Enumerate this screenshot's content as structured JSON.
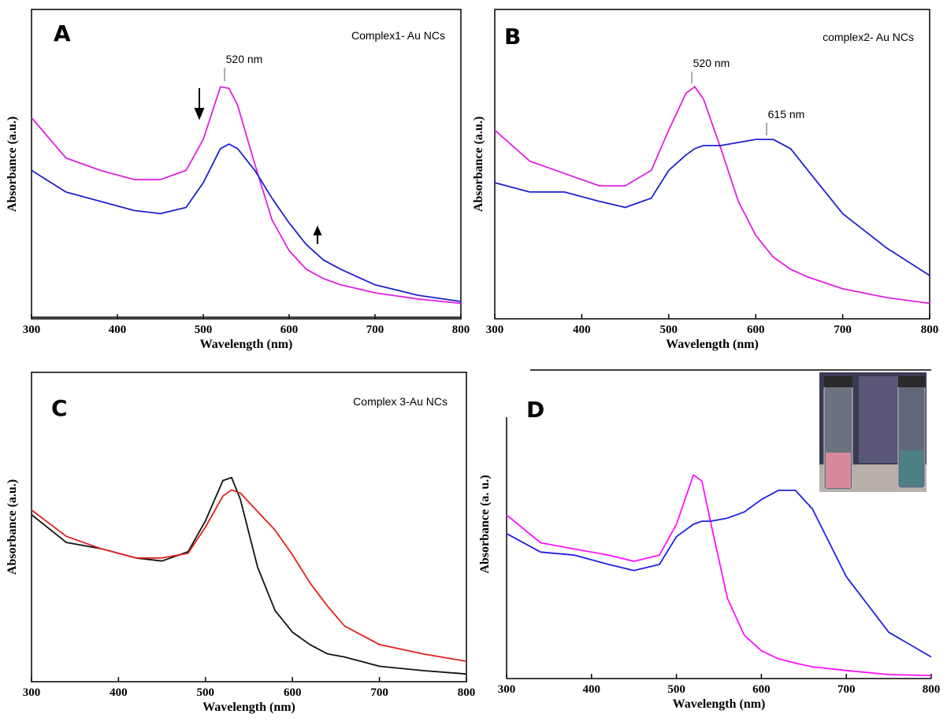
{
  "chart_data": [
    {
      "type": "line",
      "panel": "A",
      "subtitle": "Complex1- Au NCs",
      "x_label": "Wavelength (nm)",
      "y_label": "Absorbance (a.u.)",
      "annotations": [
        "520 nm"
      ],
      "x": [
        300,
        340,
        380,
        420,
        450,
        480,
        500,
        520,
        530,
        540,
        560,
        580,
        600,
        620,
        640,
        660,
        700,
        750,
        800
      ],
      "series": [
        {
          "color": "#e020e0",
          "values": [
            0.65,
            0.52,
            0.48,
            0.45,
            0.45,
            0.48,
            0.58,
            0.75,
            0.745,
            0.69,
            0.5,
            0.32,
            0.22,
            0.16,
            0.13,
            0.11,
            0.084,
            0.064,
            0.05
          ]
        },
        {
          "color": "#2020d0",
          "values": [
            0.48,
            0.41,
            0.38,
            0.35,
            0.34,
            0.36,
            0.44,
            0.55,
            0.565,
            0.55,
            0.48,
            0.39,
            0.31,
            0.24,
            0.19,
            0.16,
            0.11,
            0.076,
            0.056
          ]
        },
        {
          "color": "#222222",
          "values": [
            0.005,
            0.005,
            0.005,
            0.005,
            0.005,
            0.005,
            0.005,
            0.005,
            0.005,
            0.005,
            0.005,
            0.005,
            0.005,
            0.005,
            0.005,
            0.005,
            0.005,
            0.005,
            0.005
          ]
        }
      ],
      "xlim": [
        300,
        800
      ],
      "xticks": [
        300,
        400,
        500,
        600,
        700,
        800
      ],
      "ylim": [
        0,
        1
      ]
    },
    {
      "type": "line",
      "panel": "B",
      "subtitle": "complex2- Au NCs",
      "x_label": "Wavelength (nm)",
      "y_label": "Absorbance (a.u.)",
      "annotations": [
        "520 nm",
        "615 nm"
      ],
      "x": [
        300,
        340,
        380,
        420,
        450,
        480,
        500,
        520,
        530,
        540,
        560,
        580,
        600,
        620,
        640,
        660,
        700,
        750,
        800
      ],
      "series": [
        {
          "color": "#e020e0",
          "values": [
            0.61,
            0.51,
            0.47,
            0.43,
            0.43,
            0.48,
            0.61,
            0.73,
            0.75,
            0.71,
            0.55,
            0.38,
            0.27,
            0.2,
            0.16,
            0.135,
            0.097,
            0.069,
            0.05
          ]
        },
        {
          "color": "#2020d0",
          "values": [
            0.44,
            0.41,
            0.41,
            0.38,
            0.36,
            0.39,
            0.48,
            0.53,
            0.55,
            0.56,
            0.56,
            0.57,
            0.58,
            0.58,
            0.55,
            0.48,
            0.34,
            0.23,
            0.14
          ]
        }
      ],
      "xlim": [
        300,
        800
      ],
      "xticks": [
        300,
        400,
        500,
        600,
        700,
        800
      ],
      "ylim": [
        0,
        1
      ]
    },
    {
      "type": "line",
      "panel": "C",
      "subtitle": "Complex 3-Au NCs",
      "x_label": "Wavelength (nm)",
      "y_label": "Absorbance (a.u.)",
      "x": [
        300,
        340,
        380,
        420,
        450,
        480,
        500,
        520,
        530,
        540,
        560,
        580,
        600,
        620,
        640,
        660,
        700,
        750,
        800
      ],
      "series": [
        {
          "color": "#111111",
          "values": [
            0.54,
            0.45,
            0.43,
            0.4,
            0.39,
            0.42,
            0.52,
            0.65,
            0.66,
            0.59,
            0.37,
            0.23,
            0.16,
            0.12,
            0.09,
            0.08,
            0.05,
            0.036,
            0.025
          ]
        },
        {
          "color": "#e02020",
          "values": [
            0.555,
            0.47,
            0.43,
            0.4,
            0.4,
            0.415,
            0.5,
            0.6,
            0.62,
            0.61,
            0.55,
            0.49,
            0.41,
            0.32,
            0.245,
            0.18,
            0.12,
            0.09,
            0.066
          ]
        }
      ],
      "xlim": [
        300,
        800
      ],
      "xticks": [
        300,
        400,
        500,
        600,
        700,
        800
      ],
      "ylim": [
        0,
        1
      ]
    },
    {
      "type": "line",
      "panel": "D",
      "x_label": "Wavelength (nm)",
      "y_label": "Absorbance (a. u.)",
      "x": [
        300,
        340,
        380,
        420,
        450,
        480,
        500,
        520,
        530,
        540,
        560,
        580,
        600,
        620,
        640,
        660,
        700,
        750,
        800
      ],
      "series": [
        {
          "color": "#ff10ff",
          "values": [
            0.53,
            0.44,
            0.42,
            0.4,
            0.38,
            0.4,
            0.5,
            0.66,
            0.64,
            0.51,
            0.26,
            0.14,
            0.09,
            0.064,
            0.05,
            0.038,
            0.026,
            0.013,
            0.01
          ]
        },
        {
          "color": "#2020e0",
          "values": [
            0.47,
            0.41,
            0.4,
            0.37,
            0.35,
            0.37,
            0.46,
            0.5,
            0.51,
            0.51,
            0.52,
            0.54,
            0.58,
            0.61,
            0.61,
            0.55,
            0.33,
            0.15,
            0.07
          ]
        }
      ],
      "xlim": [
        300,
        800
      ],
      "xticks": [
        300,
        400,
        500,
        600,
        700,
        800
      ],
      "ylim": [
        0,
        1
      ]
    }
  ]
}
